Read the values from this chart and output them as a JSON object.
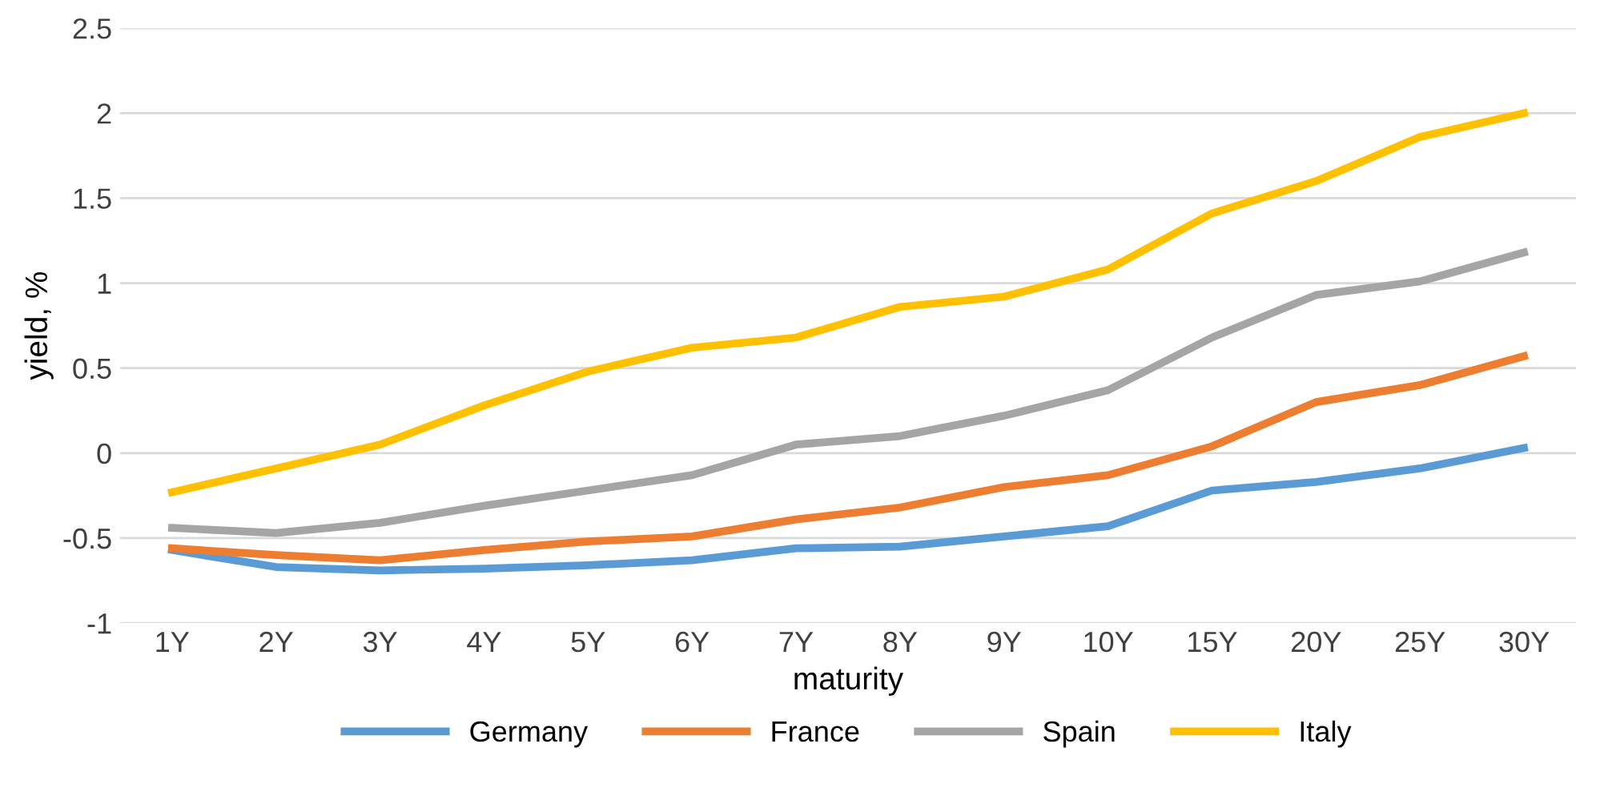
{
  "chart_data": {
    "type": "line",
    "xlabel": "maturity",
    "ylabel": "yield, %",
    "categories": [
      "1Y",
      "2Y",
      "3Y",
      "4Y",
      "5Y",
      "6Y",
      "7Y",
      "8Y",
      "9Y",
      "10Y",
      "15Y",
      "20Y",
      "25Y",
      "30Y"
    ],
    "series": [
      {
        "name": "Germany",
        "color": "#5b9bd5",
        "values": [
          -0.57,
          -0.67,
          -0.69,
          -0.68,
          -0.66,
          -0.63,
          -0.56,
          -0.55,
          -0.49,
          -0.43,
          -0.22,
          -0.17,
          -0.09,
          0.03
        ]
      },
      {
        "name": "France",
        "color": "#ed7d31",
        "values": [
          -0.56,
          -0.6,
          -0.63,
          -0.57,
          -0.52,
          -0.49,
          -0.39,
          -0.32,
          -0.2,
          -0.13,
          0.04,
          0.3,
          0.4,
          0.57
        ]
      },
      {
        "name": "Spain",
        "color": "#a5a5a5",
        "values": [
          -0.44,
          -0.47,
          -0.41,
          -0.31,
          -0.22,
          -0.13,
          0.05,
          0.1,
          0.22,
          0.37,
          0.68,
          0.93,
          1.01,
          1.18
        ]
      },
      {
        "name": "Italy",
        "color": "#ffc000",
        "values": [
          -0.23,
          -0.09,
          0.05,
          0.28,
          0.48,
          0.62,
          0.68,
          0.86,
          0.92,
          1.08,
          1.41,
          1.6,
          1.86,
          2.0
        ]
      }
    ],
    "ylim": [
      -1,
      2.5
    ],
    "yticks": [
      -1,
      -0.5,
      0,
      0.5,
      1,
      1.5,
      2,
      2.5
    ],
    "grid": "y",
    "legend": "bottom",
    "marker": "none",
    "line_style": "solid"
  }
}
